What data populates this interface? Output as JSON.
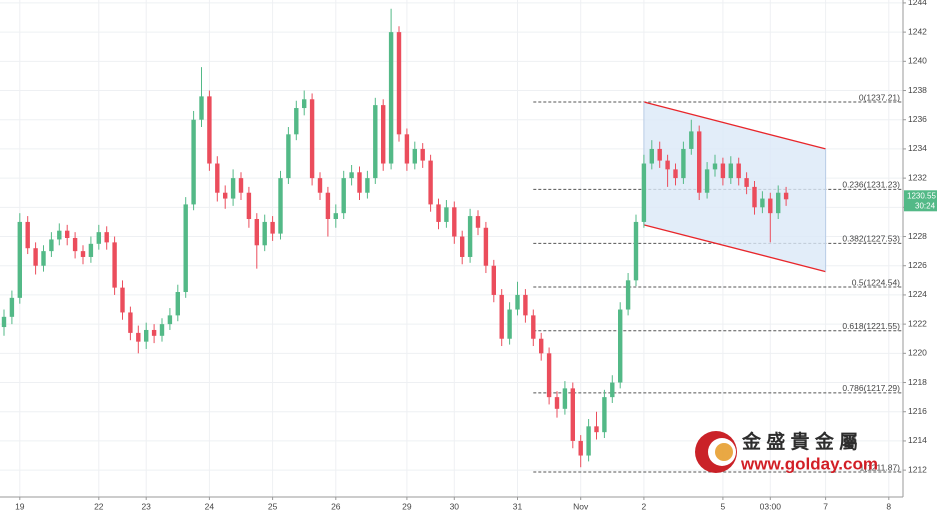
{
  "chart_data": {
    "type": "candlestick",
    "categories": [
      null,
      null,
      "19",
      null,
      null,
      null,
      null,
      null,
      null,
      null,
      null,
      null,
      "22",
      null,
      null,
      null,
      null,
      null,
      "23",
      null,
      null,
      null,
      null,
      null,
      null,
      null,
      "24",
      null,
      null,
      null,
      null,
      null,
      null,
      null,
      "25",
      null,
      null,
      null,
      null,
      null,
      null,
      null,
      "26",
      null,
      null,
      null,
      null,
      null,
      null,
      null,
      null,
      "29",
      null,
      null,
      null,
      null,
      null,
      "30",
      null,
      null,
      null,
      null,
      null,
      null,
      null,
      "31",
      null,
      null,
      null,
      null,
      null,
      null,
      null,
      "Nov",
      null,
      null,
      null,
      null,
      null,
      null,
      null,
      "2",
      null,
      null,
      null,
      null,
      null,
      null,
      null,
      null,
      null,
      "5",
      null,
      null,
      null,
      null,
      null,
      "03:00",
      null,
      null,
      null,
      null,
      null,
      null,
      "7",
      null,
      null,
      null,
      null,
      null,
      null,
      null,
      "8",
      null
    ],
    "open": [
      1221.8,
      1222.5,
      1223.8,
      1229.0,
      1227.2,
      1226.0,
      1227.0,
      1227.8,
      1228.4,
      1227.9,
      1227.0,
      1226.6,
      1227.5,
      1228.3,
      1227.6,
      1224.5,
      1222.8,
      1221.4,
      1220.8,
      1221.6,
      1221.2,
      1222.0,
      1222.6,
      1224.2,
      1230.2,
      1236.0,
      1237.6,
      1233.0,
      1231.0,
      1230.6,
      1232.0,
      1231.0,
      1229.2,
      1227.4,
      1229.0,
      1228.2,
      1232.0,
      1235.0,
      1236.8,
      1237.4,
      1232.0,
      1231.0,
      1229.2,
      1229.6,
      1232.0,
      1232.4,
      1231.0,
      1232.0,
      1237.0,
      1233.0,
      1242.0,
      1235.0,
      1233.0,
      1234.0,
      1233.2,
      1230.2,
      1229.0,
      1230.0,
      1228.0,
      1226.6,
      1229.4,
      1228.6,
      1226.0,
      1224.0,
      1221.0,
      1223.0,
      1224.0,
      1222.6,
      1221.0,
      1220.0,
      1217.0,
      1216.2,
      1217.6,
      1214.0,
      1213.0,
      1215.0,
      1214.6,
      1217.0,
      1218.0,
      1223.0,
      1225.0,
      1229.0,
      1233.0,
      1234.0,
      1233.2,
      1232.6,
      1232.0,
      1234.0,
      1235.2,
      1231.0,
      1232.6,
      1233.0,
      1232.0,
      1233.0,
      1232.0,
      1231.4,
      1230.0,
      1230.6,
      1229.6,
      1231.0,
      null,
      null,
      null,
      null,
      null,
      null,
      null,
      null,
      null,
      null,
      null,
      null,
      null,
      null
    ],
    "high": [
      1223.0,
      1224.3,
      1229.6,
      1229.4,
      1227.6,
      1227.4,
      1228.3,
      1228.9,
      1228.8,
      1228.3,
      1227.4,
      1228.0,
      1228.8,
      1228.7,
      1228.0,
      1225.0,
      1223.2,
      1221.9,
      1222.1,
      1222.0,
      1222.4,
      1223.1,
      1224.7,
      1230.7,
      1236.6,
      1239.6,
      1238.0,
      1233.5,
      1231.5,
      1232.6,
      1232.4,
      1231.4,
      1229.6,
      1229.5,
      1229.4,
      1232.5,
      1235.5,
      1237.3,
      1238.0,
      1237.8,
      1232.4,
      1231.4,
      1230.2,
      1232.5,
      1232.9,
      1232.8,
      1232.5,
      1237.5,
      1237.4,
      1243.6,
      1242.4,
      1235.4,
      1234.5,
      1234.4,
      1233.6,
      1230.6,
      1230.5,
      1230.4,
      1228.4,
      1229.9,
      1229.8,
      1229.0,
      1226.4,
      1224.4,
      1223.5,
      1224.9,
      1224.4,
      1223.0,
      1221.4,
      1220.4,
      1217.4,
      1218.1,
      1218.0,
      1214.4,
      1215.5,
      1216.0,
      1217.5,
      1218.5,
      1223.5,
      1225.5,
      1229.5,
      1233.6,
      1234.6,
      1234.5,
      1233.6,
      1233.0,
      1234.5,
      1236.0,
      1235.6,
      1233.1,
      1233.6,
      1233.4,
      1233.5,
      1233.4,
      1232.4,
      1231.8,
      1231.1,
      1231.0,
      1231.5,
      1231.4,
      null,
      null,
      null,
      null,
      null,
      null,
      null,
      null,
      null,
      null,
      null,
      null,
      null,
      null
    ],
    "low": [
      1221.2,
      1222.0,
      1223.4,
      1226.8,
      1225.4,
      1225.6,
      1226.6,
      1227.4,
      1227.4,
      1226.5,
      1226.1,
      1226.2,
      1227.1,
      1227.1,
      1224.0,
      1222.3,
      1220.9,
      1220.0,
      1220.3,
      1220.7,
      1220.8,
      1221.6,
      1222.2,
      1223.8,
      1229.8,
      1235.5,
      1232.5,
      1230.4,
      1229.9,
      1230.1,
      1230.5,
      1228.6,
      1225.8,
      1227.0,
      1227.7,
      1227.8,
      1231.6,
      1234.6,
      1236.3,
      1231.5,
      1230.5,
      1228.0,
      1228.6,
      1229.2,
      1231.5,
      1230.5,
      1230.6,
      1231.6,
      1232.5,
      1232.6,
      1234.5,
      1232.5,
      1232.6,
      1232.7,
      1229.7,
      1228.5,
      1228.6,
      1227.5,
      1226.1,
      1226.2,
      1228.1,
      1225.5,
      1223.5,
      1220.5,
      1220.6,
      1222.6,
      1222.1,
      1220.5,
      1219.5,
      1216.5,
      1215.6,
      1215.8,
      1213.5,
      1212.2,
      1212.6,
      1214.1,
      1214.2,
      1216.6,
      1217.6,
      1222.6,
      1224.6,
      1228.6,
      1232.6,
      1232.7,
      1231.4,
      1231.5,
      1231.6,
      1233.6,
      1230.5,
      1230.6,
      1232.1,
      1231.5,
      1231.6,
      1231.5,
      1230.9,
      1229.5,
      1229.6,
      1227.6,
      1229.2,
      1230.1,
      null,
      null,
      null,
      null,
      null,
      null,
      null,
      null,
      null,
      null,
      null,
      null,
      null,
      null
    ],
    "close": [
      1222.5,
      1223.8,
      1229.0,
      1227.2,
      1226.0,
      1227.0,
      1227.8,
      1228.4,
      1227.9,
      1227.0,
      1226.6,
      1227.5,
      1228.3,
      1227.6,
      1224.5,
      1222.8,
      1221.4,
      1220.8,
      1221.6,
      1221.2,
      1222.0,
      1222.6,
      1224.2,
      1230.2,
      1236.0,
      1237.6,
      1233.0,
      1231.0,
      1230.6,
      1232.0,
      1231.0,
      1229.2,
      1227.4,
      1229.0,
      1228.2,
      1232.0,
      1235.0,
      1236.8,
      1237.4,
      1232.0,
      1231.0,
      1229.2,
      1229.6,
      1232.0,
      1232.4,
      1231.0,
      1232.0,
      1237.0,
      1233.0,
      1242.0,
      1235.0,
      1233.0,
      1234.0,
      1233.2,
      1230.2,
      1229.0,
      1230.0,
      1228.0,
      1226.6,
      1229.4,
      1228.6,
      1226.0,
      1224.0,
      1221.0,
      1223.0,
      1224.0,
      1222.6,
      1221.0,
      1220.0,
      1217.0,
      1216.2,
      1217.6,
      1214.0,
      1213.0,
      1215.0,
      1214.6,
      1217.0,
      1218.0,
      1223.0,
      1225.0,
      1229.0,
      1233.0,
      1234.0,
      1233.2,
      1232.6,
      1232.0,
      1234.0,
      1235.2,
      1231.0,
      1232.6,
      1233.0,
      1232.0,
      1233.0,
      1232.0,
      1231.4,
      1230.0,
      1230.6,
      1229.6,
      1231.0,
      1230.55,
      null,
      null,
      null,
      null,
      null,
      null,
      null,
      null,
      null,
      null,
      null,
      null,
      null,
      null
    ],
    "up_color": "#53b987",
    "down_color": "#eb4d5c",
    "ylim": [
      1210.16,
      1244.2
    ],
    "yticks": [
      1212,
      1214,
      1216,
      1218,
      1220,
      1222,
      1224,
      1226,
      1228,
      1230,
      1232,
      1234,
      1236,
      1238,
      1240,
      1242,
      1244
    ],
    "grid": true,
    "countdown": "30:24",
    "fib": {
      "start": 67,
      "color": "#555555",
      "levels": [
        {
          "value": 1237.21,
          "label": "0(1237.21)"
        },
        {
          "value": 1231.23,
          "label": "0.236(1231.23)"
        },
        {
          "value": 1227.53,
          "label": "0.382(1227.53)"
        },
        {
          "value": 1224.54,
          "label": "0.5(1224.54)"
        },
        {
          "value": 1221.55,
          "label": "0.618(1221.55)"
        },
        {
          "value": 1217.29,
          "label": "0.786(1217.29)"
        },
        {
          "value": 1211.87,
          "label": "1(1211.87)"
        }
      ]
    },
    "channel": {
      "x": [
        81,
        104
      ],
      "upper": [
        1237.21,
        1234.0
      ],
      "lower": [
        1228.8,
        1225.6
      ],
      "color": "#e8262b",
      "fill": "#dbe8f7"
    },
    "watermark": {
      "name": "金 盛 貴 金 屬",
      "url": "www.golday.com"
    }
  }
}
